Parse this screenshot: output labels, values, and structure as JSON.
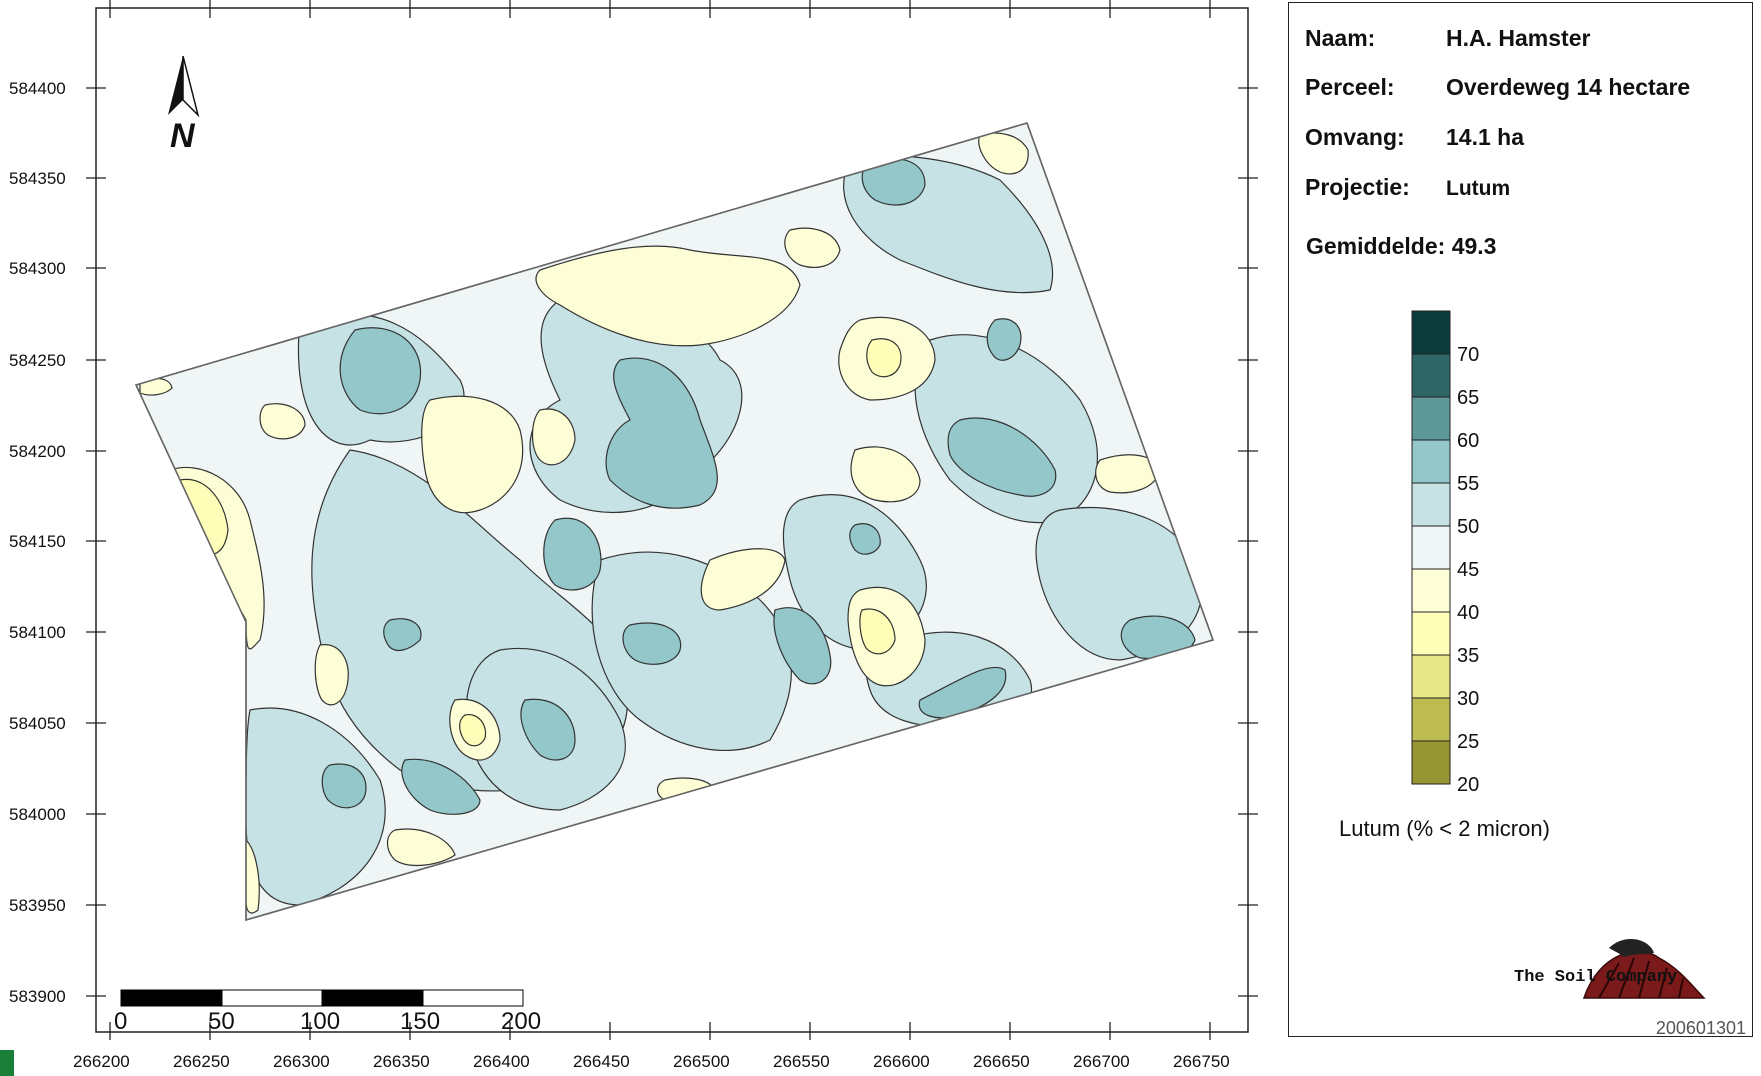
{
  "map": {
    "y_ticks": [
      "584400",
      "584350",
      "584300",
      "584250",
      "584200",
      "584150",
      "584100",
      "584050",
      "584000",
      "583950",
      "583900"
    ],
    "x_ticks": [
      "266200",
      "266250",
      "266300",
      "266350",
      "266400",
      "266450",
      "266500",
      "266550",
      "266600",
      "266650",
      "266700",
      "266750"
    ],
    "north_label": "N",
    "scale_labels": [
      "0",
      "50",
      "100",
      "150",
      "200"
    ]
  },
  "info": {
    "name_key": "Naam:",
    "name_value": "H.A. Hamster",
    "parcel_key": "Perceel:",
    "parcel_value": "Overdeweg 14 hectare",
    "size_key": "Omvang:",
    "size_value": "14.1 ha",
    "projection_key": "Projectie:",
    "projection_value": "Lutum",
    "mean_label": "Gemiddelde: 49.3"
  },
  "legend": {
    "title": "Lutum (% < 2 micron)",
    "class_labels": [
      "70",
      "65",
      "60",
      "55",
      "50",
      "45",
      "40",
      "35",
      "30",
      "25",
      "20"
    ],
    "class_colors": [
      "#0b3b3a",
      "#2e6565",
      "#5e9797",
      "#93c7c9",
      "#c7e2e4",
      "#f0f6f6",
      "#fefed6",
      "#fefeb8",
      "#e6e688",
      "#bcbc52",
      "#969632"
    ]
  },
  "footer": {
    "company": "The Soil Company",
    "doc_id": "200601301"
  },
  "colors": {
    "zone_lightest": "#f0f6f6",
    "zone_light_teal": "#c7e2e4",
    "zone_teal": "#93c7c9",
    "zone_yellow": "#fefed6",
    "zone_deep_yellow": "#fefeb8",
    "contour": "#333333"
  }
}
